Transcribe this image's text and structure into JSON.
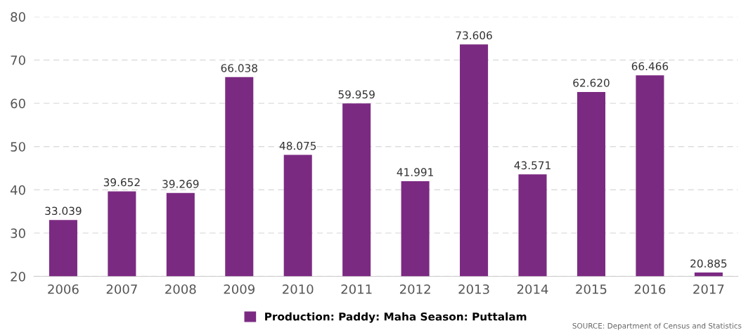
{
  "chart_data": {
    "type": "bar",
    "categories": [
      "2006",
      "2007",
      "2008",
      "2009",
      "2010",
      "2011",
      "2012",
      "2013",
      "2014",
      "2015",
      "2016",
      "2017"
    ],
    "series": [
      {
        "name": "Production: Paddy: Maha Season: Puttalam",
        "color": "#7b2a82",
        "values": [
          33.039,
          39.652,
          39.269,
          66.038,
          48.075,
          59.959,
          41.991,
          73.606,
          43.571,
          62.62,
          66.466,
          20.885
        ],
        "value_labels": [
          "33.039",
          "39.652",
          "39.269",
          "66.038",
          "48.075",
          "59.959",
          "41.991",
          "73.606",
          "43.571",
          "62.620",
          "66.466",
          "20.885"
        ]
      }
    ],
    "ylim": [
      20,
      80
    ],
    "yticks": [
      20,
      30,
      40,
      50,
      60,
      70,
      80
    ],
    "grid": "y",
    "legend": "bottom",
    "annotations": [
      "SOURCE: Department of Census and Statistics"
    ]
  }
}
